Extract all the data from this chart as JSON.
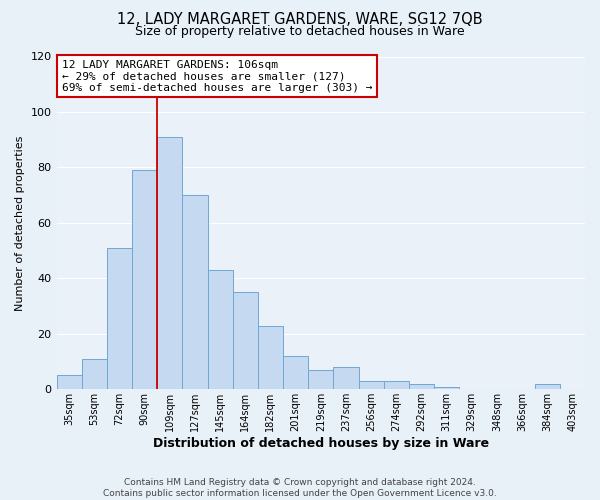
{
  "title_line1": "12, LADY MARGARET GARDENS, WARE, SG12 7QB",
  "title_line2": "Size of property relative to detached houses in Ware",
  "xlabel": "Distribution of detached houses by size in Ware",
  "ylabel": "Number of detached properties",
  "bin_labels": [
    "35sqm",
    "53sqm",
    "72sqm",
    "90sqm",
    "109sqm",
    "127sqm",
    "145sqm",
    "164sqm",
    "182sqm",
    "201sqm",
    "219sqm",
    "237sqm",
    "256sqm",
    "274sqm",
    "292sqm",
    "311sqm",
    "329sqm",
    "348sqm",
    "366sqm",
    "384sqm",
    "403sqm"
  ],
  "bar_heights": [
    5,
    11,
    51,
    79,
    91,
    70,
    43,
    35,
    23,
    12,
    7,
    8,
    3,
    3,
    2,
    1,
    0,
    0,
    0,
    2,
    0
  ],
  "bar_color": "#c5d9f0",
  "bar_edge_color": "#6fa8d4",
  "vline_x": 4,
  "vline_color": "#cc0000",
  "annotation_title": "12 LADY MARGARET GARDENS: 106sqm",
  "annotation_line2": "← 29% of detached houses are smaller (127)",
  "annotation_line3": "69% of semi-detached houses are larger (303) →",
  "annotation_box_color": "#ffffff",
  "annotation_box_edge_color": "#cc0000",
  "ylim": [
    0,
    120
  ],
  "yticks": [
    0,
    20,
    40,
    60,
    80,
    100,
    120
  ],
  "footer_line1": "Contains HM Land Registry data © Crown copyright and database right 2024.",
  "footer_line2": "Contains public sector information licensed under the Open Government Licence v3.0.",
  "background_color": "#e8f0f8",
  "plot_background_color": "#eaf1f8",
  "grid_color": "#ffffff",
  "title1_fontsize": 10.5,
  "title2_fontsize": 9,
  "ylabel_fontsize": 8,
  "xlabel_fontsize": 9,
  "ytick_fontsize": 8,
  "xtick_fontsize": 7,
  "footer_fontsize": 6.5,
  "ann_fontsize": 8
}
